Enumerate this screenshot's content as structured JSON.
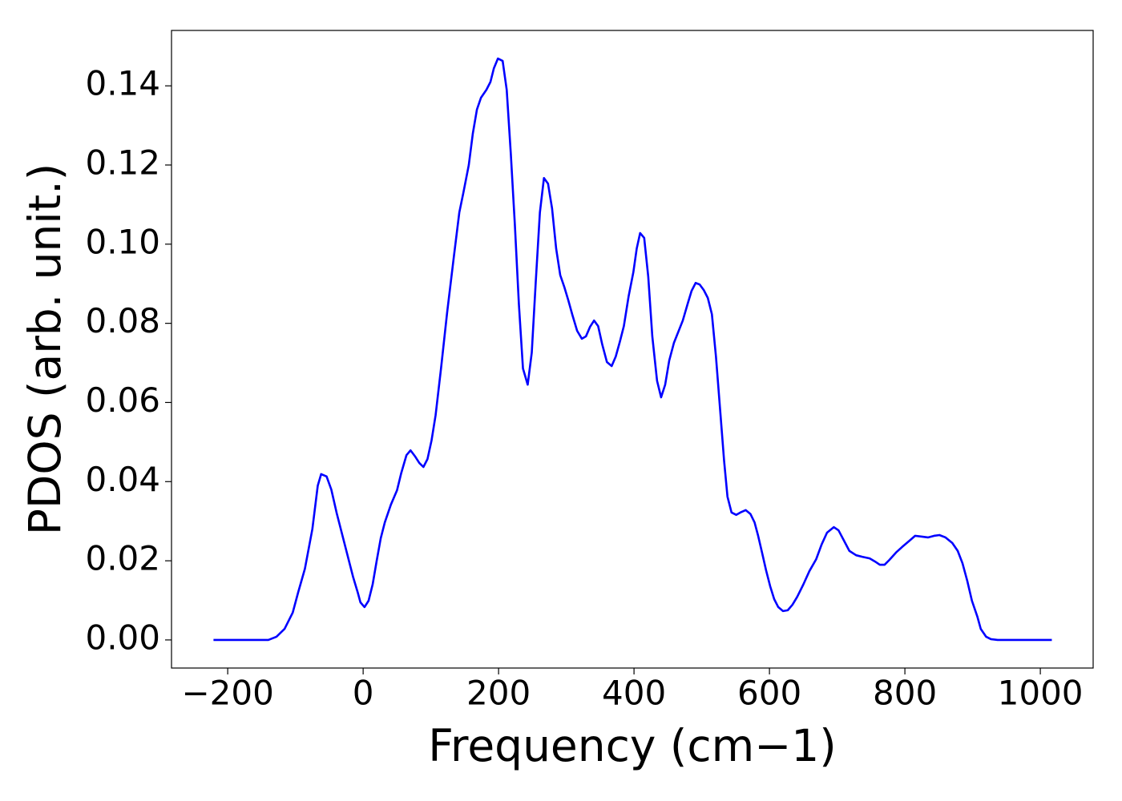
{
  "chart_data": {
    "type": "line",
    "xlabel": "Frequency (cm−1)",
    "ylabel": "PDOS (arb. unit.)",
    "xlim": [
      -283,
      1078
    ],
    "ylim": [
      -0.0071,
      0.154
    ],
    "xticks": [
      {
        "value": -200,
        "label": "−200"
      },
      0,
      200,
      400,
      600,
      800,
      1000
    ],
    "yticks": [
      {
        "value": 0,
        "label": "0.00"
      },
      {
        "value": 0.02,
        "label": "0.02"
      },
      {
        "value": 0.04,
        "label": "0.04"
      },
      {
        "value": 0.06,
        "label": "0.06"
      },
      {
        "value": 0.08,
        "label": "0.08"
      },
      {
        "value": 0.1,
        "label": "0.10"
      },
      {
        "value": 0.12,
        "label": "0.12"
      },
      {
        "value": 0.14,
        "label": "0.14"
      }
    ],
    "grid": false,
    "x": [
      -221,
      -140,
      -128,
      -116,
      -104,
      -96,
      -86,
      -75,
      -67,
      -62,
      -54,
      -47,
      -39,
      -27,
      -15,
      -8,
      -4,
      2,
      8,
      14,
      20,
      26,
      32,
      41,
      50,
      56,
      64,
      70,
      77,
      83,
      89,
      95,
      101,
      107,
      115,
      124,
      134,
      142,
      148,
      156,
      162,
      168,
      174,
      182,
      188,
      193,
      199,
      206,
      212,
      218,
      224,
      230,
      236,
      243,
      249,
      255,
      261,
      267,
      273,
      279,
      285,
      291,
      297,
      303,
      309,
      316,
      323,
      329,
      335,
      341,
      347,
      353,
      360,
      367,
      373,
      379,
      385,
      392,
      399,
      404,
      409,
      415,
      421,
      427,
      434,
      440,
      446,
      452,
      459,
      466,
      472,
      479,
      485,
      491,
      497,
      503,
      509,
      515,
      521,
      527,
      533,
      538,
      544,
      551,
      557,
      565,
      572,
      578,
      583,
      589,
      595,
      601,
      607,
      613,
      620,
      627,
      634,
      641,
      650,
      659,
      669,
      677,
      685,
      695,
      702,
      710,
      718,
      728,
      737,
      748,
      756,
      763,
      770,
      777,
      787,
      796,
      807,
      815,
      825,
      834,
      843,
      851,
      860,
      870,
      878,
      885,
      892,
      899,
      907,
      912,
      920,
      927,
      937,
      1017
    ],
    "series": [
      {
        "color": "#0000ff",
        "values": [
          0,
          0,
          0.0008,
          0.0028,
          0.0069,
          0.012,
          0.018,
          0.028,
          0.039,
          0.0419,
          0.0413,
          0.038,
          0.032,
          0.024,
          0.016,
          0.012,
          0.0095,
          0.0083,
          0.0099,
          0.014,
          0.02,
          0.0257,
          0.0297,
          0.0342,
          0.0378,
          0.042,
          0.0467,
          0.0479,
          0.0463,
          0.0447,
          0.0437,
          0.0457,
          0.0504,
          0.0568,
          0.0686,
          0.0827,
          0.0969,
          0.108,
          0.113,
          0.12,
          0.128,
          0.134,
          0.137,
          0.139,
          0.141,
          0.1444,
          0.1469,
          0.1463,
          0.139,
          0.123,
          0.105,
          0.0848,
          0.0686,
          0.0645,
          0.0726,
          0.0908,
          0.108,
          0.1167,
          0.1153,
          0.109,
          0.0989,
          0.0922,
          0.0892,
          0.0858,
          0.0821,
          0.0781,
          0.0761,
          0.0767,
          0.0791,
          0.0807,
          0.0793,
          0.0747,
          0.0702,
          0.0692,
          0.0716,
          0.0753,
          0.0793,
          0.0868,
          0.0929,
          0.0989,
          0.1028,
          0.1016,
          0.0918,
          0.0767,
          0.0655,
          0.0613,
          0.0645,
          0.0706,
          0.0751,
          0.0781,
          0.0807,
          0.0848,
          0.0882,
          0.0902,
          0.0898,
          0.0884,
          0.0864,
          0.0823,
          0.0716,
          0.0585,
          0.0453,
          0.0362,
          0.0322,
          0.0316,
          0.0322,
          0.0328,
          0.0318,
          0.0297,
          0.0265,
          0.0221,
          0.0176,
          0.0136,
          0.0103,
          0.0083,
          0.0073,
          0.0075,
          0.0089,
          0.0109,
          0.014,
          0.0174,
          0.0204,
          0.0241,
          0.0271,
          0.0285,
          0.0277,
          0.0251,
          0.0225,
          0.0214,
          0.021,
          0.0206,
          0.0198,
          0.019,
          0.019,
          0.0202,
          0.0221,
          0.0235,
          0.0251,
          0.0263,
          0.0261,
          0.0259,
          0.0263,
          0.0265,
          0.0259,
          0.0245,
          0.0225,
          0.0194,
          0.015,
          0.0099,
          0.0059,
          0.0028,
          0.0008,
          0.0002,
          0,
          0
        ]
      }
    ]
  }
}
